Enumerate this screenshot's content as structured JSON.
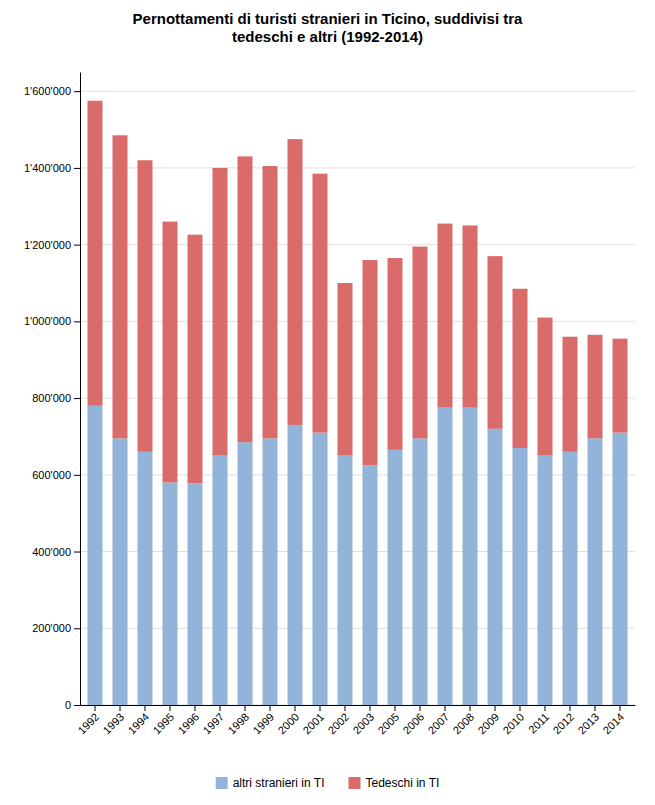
{
  "chart_data": {
    "type": "bar",
    "stacked": true,
    "title": "Pernottamenti di turisti stranieri in Ticino, suddivisi tra\ntedeschi e altri (1992-2014)",
    "categories": [
      "1992",
      "1993",
      "1994",
      "1995",
      "1996",
      "1997",
      "1998",
      "1999",
      "2000",
      "2001",
      "2002",
      "2003",
      "2005",
      "2006",
      "2007",
      "2008",
      "2009",
      "2010",
      "2011",
      "2012",
      "2013",
      "2014"
    ],
    "series": [
      {
        "name": "altri stranieri in TI",
        "color": "#92b4d8",
        "values": [
          780000,
          695000,
          660000,
          580000,
          578000,
          650000,
          685000,
          695000,
          730000,
          710000,
          650000,
          625000,
          665000,
          695000,
          775000,
          775000,
          720000,
          670000,
          650000,
          660000,
          695000,
          710000
        ]
      },
      {
        "name": "Tedeschi in TI",
        "color": "#da6b6b",
        "values": [
          795000,
          790000,
          760000,
          680000,
          648000,
          750000,
          745000,
          710000,
          745000,
          675000,
          450000,
          535000,
          500000,
          500000,
          480000,
          475000,
          450000,
          415000,
          360000,
          300000,
          270000,
          245000
        ]
      }
    ],
    "ylim": [
      0,
      1650000
    ],
    "yticks": [
      0,
      {
        "value": 200000,
        "label": "200'000"
      },
      {
        "value": 400000,
        "label": "400'000"
      },
      {
        "value": 600000,
        "label": "600'000"
      },
      {
        "value": 800000,
        "label": "800'000"
      },
      {
        "value": 1000000,
        "label": "1'000'000"
      },
      {
        "value": 1200000,
        "label": "1'200'000"
      },
      {
        "value": 1400000,
        "label": "1'400'000"
      },
      {
        "value": 1600000,
        "label": "1'600'000"
      }
    ],
    "grid": true,
    "legend": "bottom"
  }
}
